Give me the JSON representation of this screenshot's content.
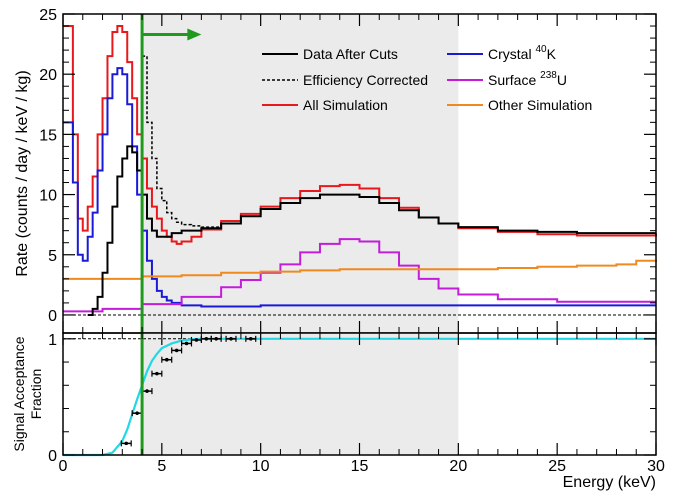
{
  "chart_data": [
    {
      "type": "line",
      "panel": "rate",
      "ylabel": "Rate (counts / day / keV / kg)",
      "xlabel": "",
      "xlim": [
        0,
        30
      ],
      "ylim": [
        -1.5,
        25
      ],
      "yticks": [
        0,
        5,
        10,
        15,
        20,
        25
      ],
      "threshold_keV": 4,
      "shaded_region": [
        4,
        20
      ],
      "arrow": {
        "from": 4,
        "to": 7,
        "y": 23.3,
        "color": "#1f9a1f"
      },
      "legend_placement": "top-right",
      "legend": {
        "data": "Data After Cuts",
        "eff": "Efficiency Corrected",
        "allsim": "All Simulation",
        "k40_prefix": "Crystal ",
        "k40_sup": "40",
        "k40_suffix": "K",
        "u238_prefix": "Surface ",
        "u238_sup": "238",
        "u238_suffix": "U",
        "other": "Other Simulation"
      },
      "series": [
        {
          "name": "All Simulation",
          "color": "#e8191c",
          "dashed": false,
          "x": [
            0,
            0.5,
            0.75,
            1,
            1.25,
            1.5,
            1.75,
            2,
            2.25,
            2.5,
            2.75,
            3,
            3.25,
            3.5,
            3.75,
            4,
            4.25,
            4.5,
            4.75,
            5,
            5.25,
            5.5,
            5.75,
            6,
            6.5,
            7,
            8,
            9,
            10,
            11,
            12,
            13,
            14,
            15,
            16,
            17,
            18,
            19,
            20,
            22,
            24,
            26,
            28,
            30
          ],
          "y": [
            24,
            15,
            8,
            7,
            9,
            11.5,
            15,
            18,
            21.5,
            23.5,
            24,
            23.5,
            21,
            18,
            15,
            13,
            10.5,
            9,
            8,
            7,
            6.5,
            6.1,
            5.9,
            6.1,
            6.5,
            7.1,
            7.8,
            8.4,
            9,
            9.7,
            10.3,
            10.7,
            10.8,
            10.5,
            9.7,
            8.9,
            8.1,
            7.6,
            7.2,
            6.9,
            6.7,
            6.6,
            6.6,
            6.8
          ]
        },
        {
          "name": "Crystal 40K",
          "color": "#1a1ad6",
          "dashed": false,
          "x": [
            0,
            0.5,
            0.75,
            1,
            1.25,
            1.5,
            1.75,
            2,
            2.25,
            2.5,
            2.75,
            3,
            3.25,
            3.5,
            3.75,
            4,
            4.25,
            4.5,
            4.75,
            5,
            5.25,
            5.5,
            6,
            7,
            8,
            10,
            12,
            15,
            20,
            25,
            30
          ],
          "y": [
            16,
            11,
            5,
            4.5,
            6.5,
            8.5,
            12,
            15,
            18,
            20,
            20.5,
            20,
            17.5,
            14,
            10,
            7,
            4.5,
            3,
            2,
            1.5,
            1.2,
            1,
            0.8,
            0.7,
            0.7,
            0.8,
            0.8,
            0.8,
            0.8,
            0.8,
            0.8
          ]
        },
        {
          "name": "Surface 238U",
          "color": "#c21dd9",
          "dashed": false,
          "x": [
            0,
            2,
            4,
            6,
            8,
            9,
            10,
            11,
            12,
            13,
            14,
            15,
            16,
            17,
            18,
            19,
            20,
            22,
            25,
            30
          ],
          "y": [
            0.3,
            0.5,
            0.9,
            1.5,
            2.3,
            2.9,
            3.5,
            4.2,
            5.2,
            5.9,
            6.3,
            6.1,
            5.2,
            4.1,
            3,
            2.2,
            1.7,
            1.3,
            1.1,
            1.1
          ]
        },
        {
          "name": "Other Simulation",
          "color": "#f08a1e",
          "dashed": false,
          "x": [
            0,
            2,
            4,
            6,
            8,
            10,
            12,
            14,
            16,
            18,
            20,
            22,
            24,
            26,
            28,
            29,
            30
          ],
          "y": [
            3,
            3,
            3.2,
            3.3,
            3.5,
            3.6,
            3.7,
            3.8,
            3.8,
            3.8,
            3.8,
            3.9,
            4,
            4.1,
            4.2,
            4.5,
            4.4
          ]
        },
        {
          "name": "Data After Cuts",
          "color": "#000000",
          "dashed": false,
          "x": [
            1.25,
            1.5,
            1.75,
            2,
            2.25,
            2.5,
            2.75,
            3,
            3.25,
            3.5,
            3.75,
            4,
            4.25,
            4.5,
            4.75,
            5,
            5.5,
            6,
            7,
            8,
            9,
            10,
            11,
            12,
            13,
            14,
            15,
            16,
            17,
            18,
            19,
            20,
            22,
            24,
            26,
            28,
            30
          ],
          "y": [
            0,
            0.5,
            1.5,
            3.5,
            6,
            9,
            11.5,
            13,
            14,
            13.5,
            12,
            10,
            8,
            7,
            6.5,
            6.5,
            6.8,
            7,
            7.2,
            7.6,
            8.2,
            8.8,
            9.3,
            9.7,
            10,
            10,
            9.8,
            9.3,
            8.7,
            8.1,
            7.6,
            7.3,
            7,
            6.9,
            6.8,
            6.8,
            6.8
          ]
        },
        {
          "name": "Efficiency Corrected",
          "color": "#000000",
          "dashed": true,
          "x": [
            4,
            4.25,
            4.5,
            4.75,
            5,
            5.25,
            5.5,
            5.75,
            6,
            6.5,
            7,
            8
          ],
          "y": [
            21.5,
            16,
            13,
            10.5,
            9.5,
            8.5,
            8,
            7.7,
            7.5,
            7.4,
            7.3,
            7.6
          ]
        }
      ]
    },
    {
      "type": "line",
      "panel": "acceptance",
      "ylabel_line1": "Signal Acceptance",
      "ylabel_line2": "Fraction",
      "xlabel": "Energy (keV)",
      "xlim": [
        0,
        30
      ],
      "ylim": [
        0,
        1.05
      ],
      "yticks": [
        0,
        1
      ],
      "xticks": [
        0,
        5,
        10,
        15,
        20,
        25,
        30
      ],
      "reference_line": 1,
      "curve": {
        "name": "Acceptance fit",
        "color": "#22d8e6",
        "x": [
          0,
          1,
          2,
          2.5,
          3,
          3.25,
          3.5,
          3.75,
          4,
          4.25,
          4.5,
          4.75,
          5,
          5.5,
          6,
          6.5,
          7,
          8,
          10,
          20,
          30
        ],
        "y": [
          0,
          0,
          0,
          0.02,
          0.12,
          0.22,
          0.35,
          0.48,
          0.6,
          0.72,
          0.81,
          0.87,
          0.92,
          0.96,
          0.985,
          0.995,
          1,
          1,
          1,
          1,
          1
        ]
      },
      "points": {
        "name": "Measured acceptance",
        "color": "#000000",
        "x": [
          3.2,
          3.75,
          4.25,
          4.75,
          5.25,
          5.75,
          6.25,
          6.75,
          7.25,
          7.75,
          8.5,
          9.5
        ],
        "y": [
          0.1,
          0.36,
          0.55,
          0.7,
          0.82,
          0.9,
          0.96,
          0.99,
          1,
          1,
          1,
          1
        ],
        "xerr": 0.25
      }
    }
  ]
}
